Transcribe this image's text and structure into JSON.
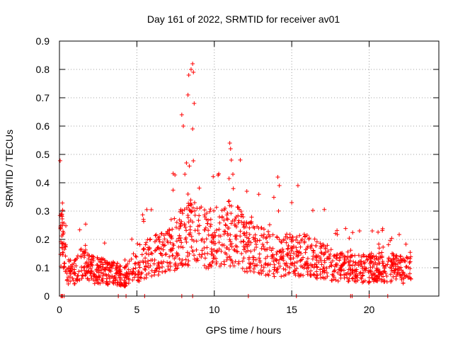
{
  "chart_data": {
    "type": "scatter",
    "title": "Day 161 of 2022, SRMTID for receiver av01",
    "xlabel": "GPS time / hours",
    "ylabel": "SRMTID / TECUs",
    "xlim": [
      0,
      24.5
    ],
    "ylim": [
      0,
      0.9
    ],
    "xticks": [
      0,
      5,
      10,
      15,
      20
    ],
    "yticks": [
      0,
      0.1,
      0.2,
      0.3,
      0.4,
      0.5,
      0.6,
      0.7,
      0.8,
      0.9
    ],
    "grid": true,
    "marker": "+",
    "color": "#ff0000",
    "series": [
      {
        "name": "av01",
        "profile": [
          [
            0.0,
            0.2
          ],
          [
            0.2,
            0.25
          ],
          [
            0.5,
            0.09
          ],
          [
            1.0,
            0.09
          ],
          [
            1.5,
            0.14
          ],
          [
            2.0,
            0.1
          ],
          [
            3.0,
            0.09
          ],
          [
            3.8,
            0.08
          ],
          [
            4.2,
            0.07
          ],
          [
            5.0,
            0.11
          ],
          [
            6.0,
            0.15
          ],
          [
            7.0,
            0.16
          ],
          [
            7.8,
            0.22
          ],
          [
            8.5,
            0.24
          ],
          [
            9.5,
            0.21
          ],
          [
            10.5,
            0.22
          ],
          [
            11.2,
            0.24
          ],
          [
            12.0,
            0.19
          ],
          [
            13.0,
            0.17
          ],
          [
            14.0,
            0.15
          ],
          [
            15.0,
            0.16
          ],
          [
            16.0,
            0.15
          ],
          [
            17.0,
            0.13
          ],
          [
            18.5,
            0.1
          ],
          [
            19.5,
            0.1
          ],
          [
            21.0,
            0.11
          ],
          [
            22.0,
            0.1
          ],
          [
            22.7,
            0.1
          ]
        ],
        "peaks": [
          [
            7.9,
            0.64
          ],
          [
            8.0,
            0.6
          ],
          [
            8.2,
            0.47
          ],
          [
            8.3,
            0.71
          ],
          [
            8.35,
            0.78
          ],
          [
            8.5,
            0.8
          ],
          [
            8.6,
            0.82
          ],
          [
            8.65,
            0.79
          ],
          [
            8.7,
            0.68
          ],
          [
            8.6,
            0.59
          ],
          [
            8.1,
            0.43
          ],
          [
            8.3,
            0.36
          ],
          [
            11.0,
            0.54
          ],
          [
            11.05,
            0.52
          ],
          [
            11.1,
            0.48
          ],
          [
            11.2,
            0.43
          ],
          [
            12.1,
            0.37
          ],
          [
            14.1,
            0.42
          ],
          [
            14.2,
            0.39
          ],
          [
            15.0,
            0.33
          ],
          [
            15.4,
            0.39
          ],
          [
            20.2,
            0.23
          ],
          [
            0.1,
            0.29
          ]
        ],
        "zero_points": [
          0.1,
          0.15,
          0.2,
          0.3,
          3.8,
          4.3,
          5.5,
          7.9,
          8.6,
          12.2,
          15.3,
          18.8,
          18.9,
          20.0,
          21.2
        ]
      }
    ]
  }
}
